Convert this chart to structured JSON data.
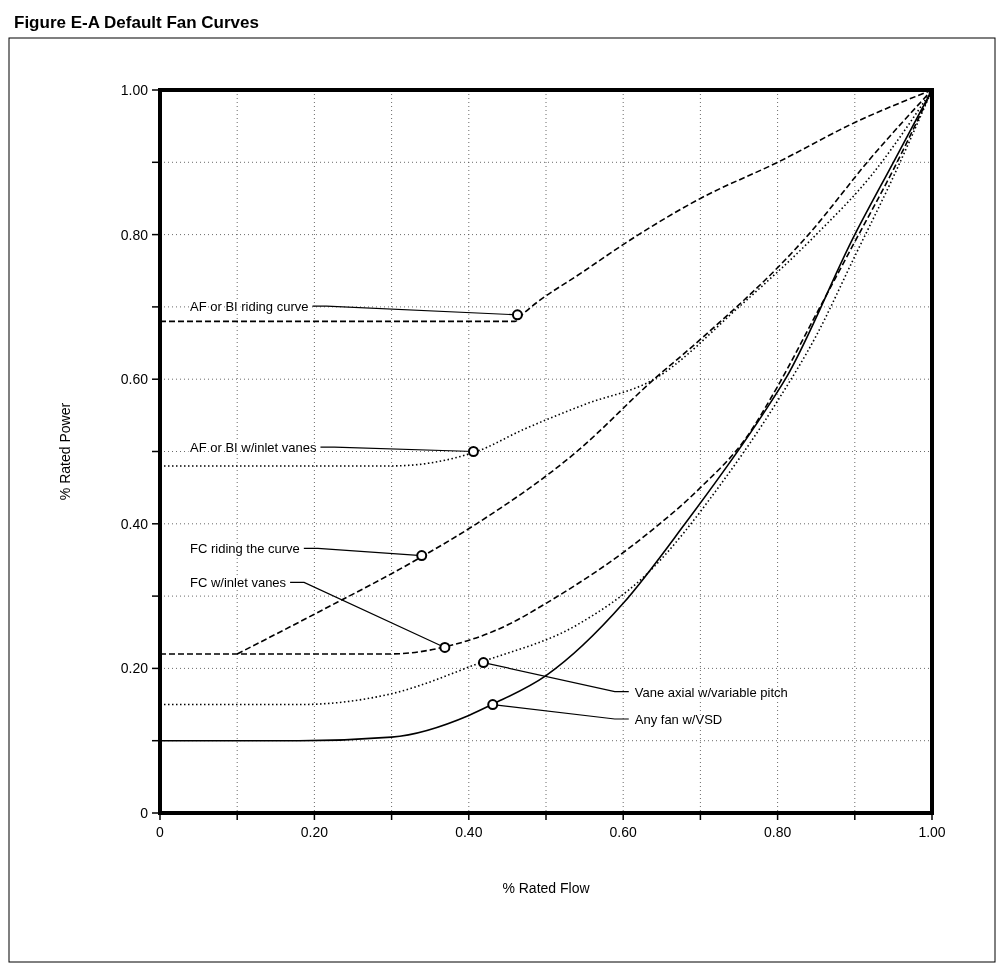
{
  "chart_data": {
    "type": "line",
    "title": "Figure E-A Default Fan Curves",
    "xlabel": "% Rated Flow",
    "ylabel": "% Rated Power",
    "xlim": [
      0,
      1
    ],
    "ylim": [
      0,
      1
    ],
    "xticks": [
      0,
      {
        "value": 0.1,
        "label": null
      },
      {
        "value": 0.2,
        "label": "0.20"
      },
      {
        "value": 0.3,
        "label": null
      },
      {
        "value": 0.4,
        "label": "0.40"
      },
      {
        "value": 0.5,
        "label": null
      },
      {
        "value": 0.6,
        "label": "0.60"
      },
      {
        "value": 0.7,
        "label": null
      },
      {
        "value": 0.8,
        "label": "0.80"
      },
      {
        "value": 0.9,
        "label": null
      },
      {
        "value": 1,
        "label": "1.00"
      }
    ],
    "yticks": [
      0,
      {
        "value": 0.1,
        "label": null
      },
      {
        "value": 0.2,
        "label": "0.20"
      },
      {
        "value": 0.3,
        "label": null
      },
      {
        "value": 0.4,
        "label": "0.40"
      },
      {
        "value": 0.5,
        "label": null
      },
      {
        "value": 0.6,
        "label": "0.60"
      },
      {
        "value": 0.7,
        "label": null
      },
      {
        "value": 0.8,
        "label": "0.80"
      },
      {
        "value": 0.9,
        "label": null
      },
      {
        "value": 1,
        "label": "1.00"
      }
    ],
    "grid": true,
    "series": [
      {
        "color": "#000000",
        "line_style": "dashed",
        "x": [
          0,
          0.46,
          0.47,
          0.55,
          0.62,
          0.7,
          0.8,
          0.9,
          1
        ],
        "values": [
          0.68,
          0.68,
          0.69,
          0.75,
          0.8,
          0.85,
          0.9,
          0.955,
          1
        ]
      },
      {
        "color": "#000000",
        "line_style": "dotted",
        "x": [
          0,
          0.3,
          0.41,
          0.47,
          0.55,
          0.64,
          0.75,
          0.85,
          0.92,
          1
        ],
        "values": [
          0.48,
          0.48,
          0.5,
          0.53,
          0.565,
          0.6,
          0.7,
          0.8,
          0.88,
          1
        ]
      },
      {
        "color": "#000000",
        "line_style": "dashed",
        "x": [
          0.1,
          0.2,
          0.34,
          0.41,
          0.54,
          0.64,
          0.7,
          0.84,
          0.92,
          1
        ],
        "values": [
          0.22,
          0.275,
          0.355,
          0.4,
          0.5,
          0.6,
          0.655,
          0.8,
          0.905,
          1
        ]
      },
      {
        "color": "#000000",
        "line_style": "dashed",
        "x": [
          0,
          0.3,
          0.37,
          0.45,
          0.5,
          0.63,
          0.7,
          0.76,
          0.8,
          0.85,
          0.9,
          0.95,
          1
        ],
        "values": [
          0.22,
          0.22,
          0.23,
          0.26,
          0.29,
          0.385,
          0.45,
          0.52,
          0.59,
          0.69,
          0.79,
          0.89,
          1
        ]
      },
      {
        "color": "#000000",
        "line_style": "dotted",
        "x": [
          0,
          0.18,
          0.3,
          0.42,
          0.54,
          0.63,
          0.73,
          0.8,
          0.85,
          0.9,
          0.95,
          1
        ],
        "values": [
          0.15,
          0.15,
          0.165,
          0.21,
          0.26,
          0.33,
          0.46,
          0.57,
          0.66,
          0.77,
          0.88,
          1
        ]
      },
      {
        "color": "#000000",
        "line_style": "solid",
        "x": [
          0,
          0.18,
          0.3,
          0.4,
          0.43,
          0.5,
          0.6,
          0.68,
          0.78,
          0.81,
          0.9,
          0.95,
          1
        ],
        "values": [
          0.1,
          0.1,
          0.105,
          0.135,
          0.15,
          0.19,
          0.29,
          0.4,
          0.55,
          0.6,
          0.8,
          0.9,
          1
        ]
      }
    ],
    "annotations": [
      {
        "text": "AF or BI riding curve",
        "x": 0.463,
        "y": 0.689
      },
      {
        "text": "AF or BI w/inlet vanes",
        "x": 0.406,
        "y": 0.5
      },
      {
        "text": "FC riding the curve",
        "x": 0.339,
        "y": 0.356
      },
      {
        "text": "FC w/inlet vanes",
        "x": 0.369,
        "y": 0.229
      },
      {
        "text": "Vane axial w/variable pitch",
        "x": 0.419,
        "y": 0.208
      },
      {
        "text": "Any fan w/VSD",
        "x": 0.431,
        "y": 0.15
      }
    ]
  }
}
